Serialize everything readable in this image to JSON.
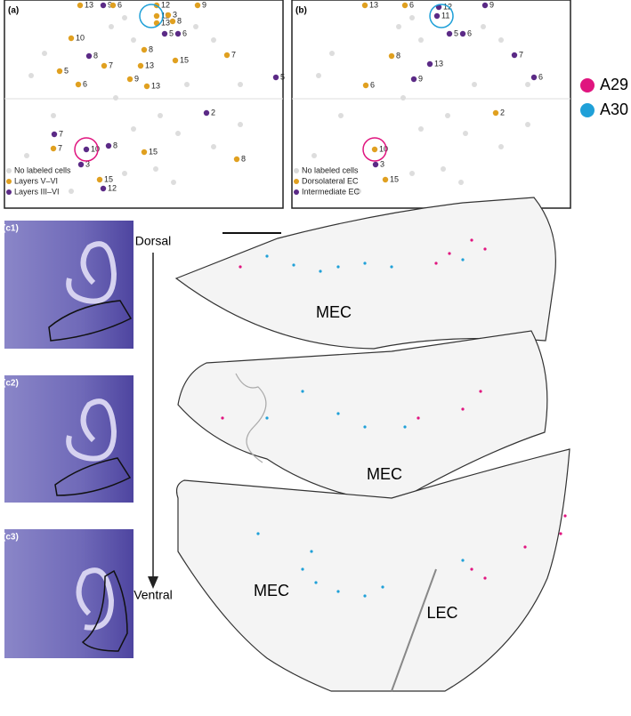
{
  "panel_a": {
    "label": "(a)",
    "points": [
      "13",
      "9",
      "6",
      "12",
      "11",
      "3",
      "8",
      "13",
      "9",
      "10",
      "5",
      "6",
      "8",
      "8",
      "7",
      "13",
      "15",
      "7",
      "5",
      "9",
      "5",
      "6",
      "13",
      "2",
      "7",
      "7",
      "10",
      "8",
      "3",
      "15",
      "8",
      "15",
      "12"
    ],
    "legend": [
      {
        "text": "No labeled cells",
        "color": "#d9d9d9"
      },
      {
        "text": "Layers V–VI",
        "color": "#e0a020"
      },
      {
        "text": "Layers III–VI",
        "color": "#5b2a86"
      }
    ]
  },
  "panel_b": {
    "label": "(b)",
    "points": [
      "13",
      "6",
      "12",
      "11",
      "9",
      "5",
      "6",
      "8",
      "13",
      "7",
      "9",
      "6",
      "6",
      "2",
      "10",
      "3",
      "15"
    ],
    "legend": [
      {
        "text": "No labeled cells",
        "color": "#d9d9d9"
      },
      {
        "text": "Dorsolateral EC",
        "color": "#e0a020"
      },
      {
        "text": "Intermediate EC",
        "color": "#5b2a86"
      }
    ]
  },
  "legend": [
    {
      "name": "A29",
      "color": "#e0157f"
    },
    {
      "name": "A30",
      "color": "#1fa0d8"
    }
  ],
  "panel_c": {
    "labels": [
      "(c1)",
      "(c2)",
      "(c3)"
    ],
    "dorsal": "Dorsal",
    "ventral": "Ventral",
    "regions": [
      "MEC",
      "MEC",
      "MEC",
      "LEC"
    ]
  }
}
